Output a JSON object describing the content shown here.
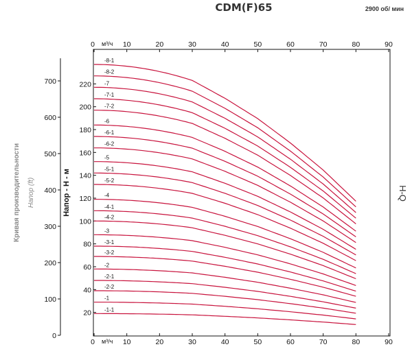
{
  "chart_data": {
    "type": "line",
    "title": "CDM(F)65",
    "subtitle": "2900 об/ мин",
    "xlabel": "м³/ч",
    "ylabel": "Напор - Н - м",
    "y2label": "Напор (ft)",
    "y2title": "Кривая производительности",
    "right_label": "H-Q",
    "xlim": [
      0,
      90
    ],
    "ylim": [
      0,
      240
    ],
    "y2lim": [
      0,
      787
    ],
    "x_ticks": [
      0,
      10,
      20,
      30,
      40,
      50,
      60,
      70,
      80,
      90
    ],
    "y_ticks": [
      20,
      40,
      60,
      80,
      100,
      120,
      140,
      160,
      180,
      200,
      220
    ],
    "y2_ticks": [
      0,
      100,
      200,
      300,
      400,
      500,
      600,
      700
    ],
    "grid": false,
    "curve_shape": {
      "x": [
        0,
        30,
        40,
        50,
        60,
        70,
        80
      ],
      "fraction_of_shutoff_head": [
        1,
        0.941,
        0.875,
        0.8,
        0.71,
        0.61,
        0.495
      ]
    },
    "series": [
      {
        "name": "-8-1",
        "shutoff_head": 237
      },
      {
        "name": "-8-2",
        "shutoff_head": 227
      },
      {
        "name": "-7",
        "shutoff_head": 217
      },
      {
        "name": "-7-1",
        "shutoff_head": 207
      },
      {
        "name": "-7-2",
        "shutoff_head": 197
      },
      {
        "name": "-6",
        "shutoff_head": 184
      },
      {
        "name": "-6-1",
        "shutoff_head": 174
      },
      {
        "name": "-6-2",
        "shutoff_head": 164
      },
      {
        "name": "-5",
        "shutoff_head": 152
      },
      {
        "name": "-5-1",
        "shutoff_head": 142
      },
      {
        "name": "-5-2",
        "shutoff_head": 132
      },
      {
        "name": "-4",
        "shutoff_head": 119
      },
      {
        "name": "-4-1",
        "shutoff_head": 109
      },
      {
        "name": "-4-2",
        "shutoff_head": 100
      },
      {
        "name": "-3",
        "shutoff_head": 88
      },
      {
        "name": "-3-1",
        "shutoff_head": 78
      },
      {
        "name": "-3-2",
        "shutoff_head": 69
      },
      {
        "name": "-2",
        "shutoff_head": 58
      },
      {
        "name": "-2-1",
        "shutoff_head": 48
      },
      {
        "name": "-2-2",
        "shutoff_head": 39
      },
      {
        "name": "-1",
        "shutoff_head": 29
      },
      {
        "name": "-1-1",
        "shutoff_head": 19
      }
    ]
  }
}
